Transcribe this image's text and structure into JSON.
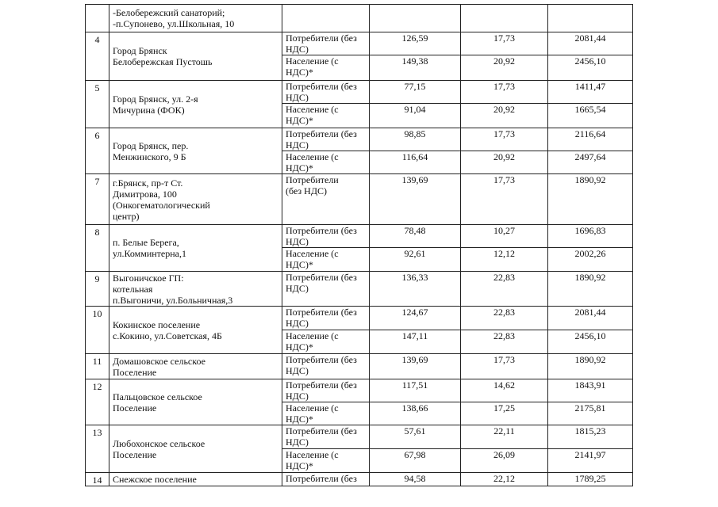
{
  "table": {
    "rows": [
      {
        "name": "-Белобережский санаторий;\n-п.Супонево, ул.Школьная, 10"
      },
      {
        "number": "4",
        "name": "Город Брянск\nБелобережская Пустошь",
        "tariffs": [
          {
            "consumer": "Потребители (без НДС)",
            "values": [
              "126,59",
              "17,73",
              "2081,44"
            ]
          },
          {
            "consumer": "Население (с НДС)*",
            "values": [
              "149,38",
              "20,92",
              "2456,10"
            ]
          }
        ]
      },
      {
        "number": "5",
        "name": "Город Брянск, ул. 2-я\nМичурина (ФОК)",
        "tariffs": [
          {
            "consumer": "Потребители (без НДС)",
            "values": [
              "77,15",
              "17,73",
              "1411,47"
            ]
          },
          {
            "consumer": "Население (с НДС)*",
            "values": [
              "91,04",
              "20,92",
              "1665,54"
            ]
          }
        ]
      },
      {
        "number": "6",
        "name": "Город Брянск, пер.\nМенжинского, 9 Б",
        "tariffs": [
          {
            "consumer": "Потребители (без НДС)",
            "values": [
              "98,85",
              "17,73",
              "2116,64"
            ]
          },
          {
            "consumer": "Население (с НДС)*",
            "values": [
              "116,64",
              "20,92",
              "2497,64"
            ]
          }
        ]
      },
      {
        "number": "7",
        "name": "г.Брянск, пр-т Ст.\nДимитрова, 100\n(Онкогематологический\nцентр)",
        "tariffs": [
          {
            "consumer": "Потребители\n(без НДС)",
            "values": [
              "139,69",
              "17,73",
              "1890,92"
            ]
          }
        ]
      },
      {
        "number": "8",
        "name": "п. Белые Берега,\nул.Комминтерна,1",
        "tariffs": [
          {
            "consumer": "Потребители (без НДС)",
            "values": [
              "78,48",
              "10,27",
              "1696,83"
            ]
          },
          {
            "consumer": "Население (с НДС)*",
            "values": [
              "92,61",
              "12,12",
              "2002,26"
            ]
          }
        ]
      },
      {
        "number": "9",
        "name": "Выгоничское ГП:\nкотельная\nп.Выгоничи, ул.Больничная,3",
        "tariffs": [
          {
            "consumer": "Потребители (без НДС)",
            "values": [
              "136,33",
              "22,83",
              "1890,92"
            ]
          }
        ]
      },
      {
        "number": "10",
        "name": "Кокинское поселение\nс.Кокино, ул.Советская, 4Б",
        "tariffs": [
          {
            "consumer": "Потребители (без НДС)",
            "values": [
              "124,67",
              "22,83",
              "2081,44"
            ]
          },
          {
            "consumer": "Население (с НДС)*",
            "values": [
              "147,11",
              "22,83",
              "2456,10"
            ]
          }
        ]
      },
      {
        "number": "11",
        "name": "Домашовское сельское\nПоселение",
        "tariffs": [
          {
            "consumer": "Потребители (без НДС)",
            "values": [
              "139,69",
              "17,73",
              "1890,92"
            ]
          }
        ]
      },
      {
        "number": "12",
        "name": "Пальцовское сельское\nПоселение",
        "tariffs": [
          {
            "consumer": "Потребители (без НДС)",
            "values": [
              "117,51",
              "14,62",
              "1843,91"
            ]
          },
          {
            "consumer": "Население (с НДС)*",
            "values": [
              "138,66",
              "17,25",
              "2175,81"
            ]
          }
        ]
      },
      {
        "number": "13",
        "name": "Любохонское сельское\nПоселение",
        "tariffs": [
          {
            "consumer": "Потребители (без НДС)",
            "values": [
              "57,61",
              "22,11",
              "1815,23"
            ]
          },
          {
            "consumer": "Население (с НДС)*",
            "values": [
              "67,98",
              "26,09",
              "2141,97"
            ]
          }
        ]
      },
      {
        "number": "14",
        "name": "Снежское поселение",
        "tariffs": [
          {
            "consumer": "Потребители (без",
            "values": [
              "94,58",
              "22,12",
              "1789,25"
            ]
          }
        ]
      }
    ]
  }
}
